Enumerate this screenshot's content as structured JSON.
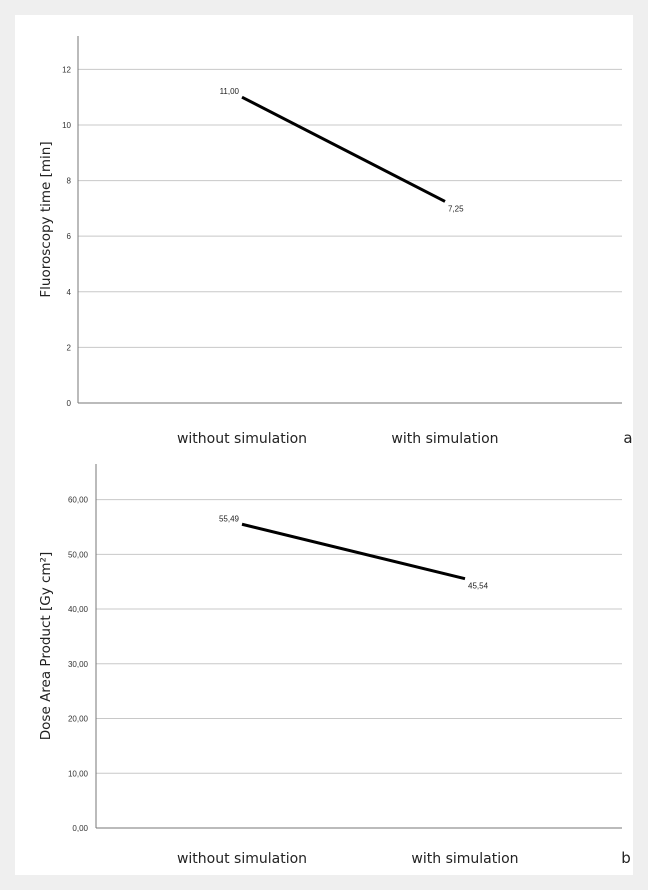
{
  "chart_data": [
    {
      "type": "line",
      "panel_label": "a",
      "ylabel": "Fluoroscopy time [min]",
      "xlabel": "",
      "categories": [
        "without simulation",
        "with simulation"
      ],
      "series": [
        {
          "values": [
            11.0,
            7.25
          ]
        }
      ],
      "data_labels": [
        "11,00",
        "7,25"
      ],
      "ylim": [
        0,
        13.2
      ],
      "yticks": [
        0,
        2,
        4,
        6,
        8,
        10,
        12
      ],
      "ytick_labels": [
        "0",
        "2",
        "4",
        "6",
        "8",
        "10",
        "12"
      ],
      "grid": true,
      "line_color": "#000000"
    },
    {
      "type": "line",
      "panel_label": "b",
      "ylabel": "Dose Area Product [Gy cm²]",
      "xlabel": "",
      "categories": [
        "without simulation",
        "with simulation"
      ],
      "series": [
        {
          "values": [
            55.49,
            45.54
          ]
        }
      ],
      "data_labels": [
        "55,49",
        "45,54"
      ],
      "ylim": [
        0,
        66.5
      ],
      "yticks": [
        0,
        10,
        20,
        30,
        40,
        50,
        60
      ],
      "ytick_labels": [
        "0,00",
        "10,00",
        "20,00",
        "30,00",
        "40,00",
        "50,00",
        "60,00"
      ],
      "grid": true,
      "line_color": "#000000"
    }
  ]
}
